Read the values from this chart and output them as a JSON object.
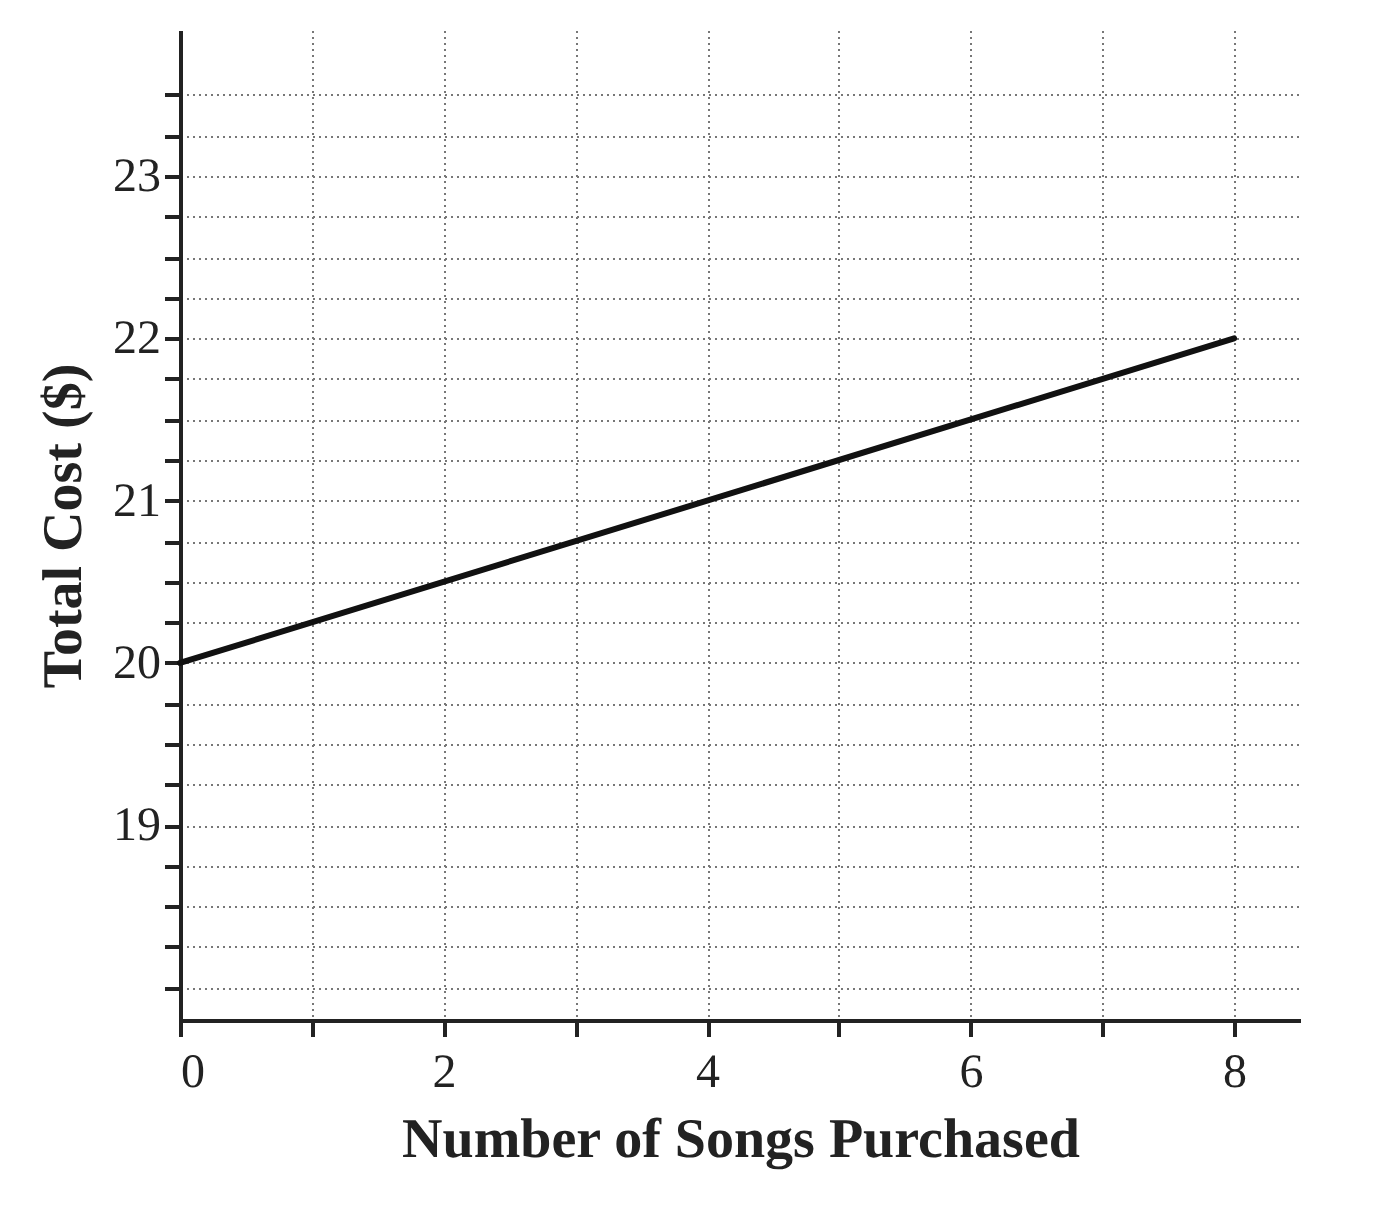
{
  "chart_data": {
    "type": "line",
    "xlabel": "Number of Songs Purchased",
    "ylabel": "Total Cost ($)",
    "x": [
      0,
      8
    ],
    "series": [
      {
        "color": "#111111",
        "values": [
          20,
          22
        ]
      }
    ],
    "xlim": [
      0,
      8.5
    ],
    "ylim": [
      17.8,
      23.9
    ],
    "xticks": [
      0,
      {
        "value": 1,
        "label": null
      },
      2,
      {
        "value": 3,
        "label": null
      },
      4,
      {
        "value": 5,
        "label": null
      },
      6,
      {
        "value": 7,
        "label": null
      },
      8
    ],
    "yticks": [
      {
        "value": 18,
        "label": null
      },
      {
        "value": 18.25,
        "label": null
      },
      {
        "value": 18.5,
        "label": null
      },
      {
        "value": 18.75,
        "label": null
      },
      19,
      {
        "value": 19.25,
        "label": null
      },
      {
        "value": 19.5,
        "label": null
      },
      {
        "value": 19.75,
        "label": null
      },
      20,
      {
        "value": 20.25,
        "label": null
      },
      {
        "value": 20.5,
        "label": null
      },
      {
        "value": 20.75,
        "label": null
      },
      21,
      {
        "value": 21.25,
        "label": null
      },
      {
        "value": 21.5,
        "label": null
      },
      {
        "value": 21.75,
        "label": null
      },
      22,
      {
        "value": 22.25,
        "label": null
      },
      {
        "value": 22.5,
        "label": null
      },
      {
        "value": 22.75,
        "label": null
      },
      23,
      {
        "value": 23.25,
        "label": null
      },
      {
        "value": 23.5,
        "label": null
      }
    ],
    "grid": true,
    "marker": "none",
    "line_style": "solid"
  }
}
